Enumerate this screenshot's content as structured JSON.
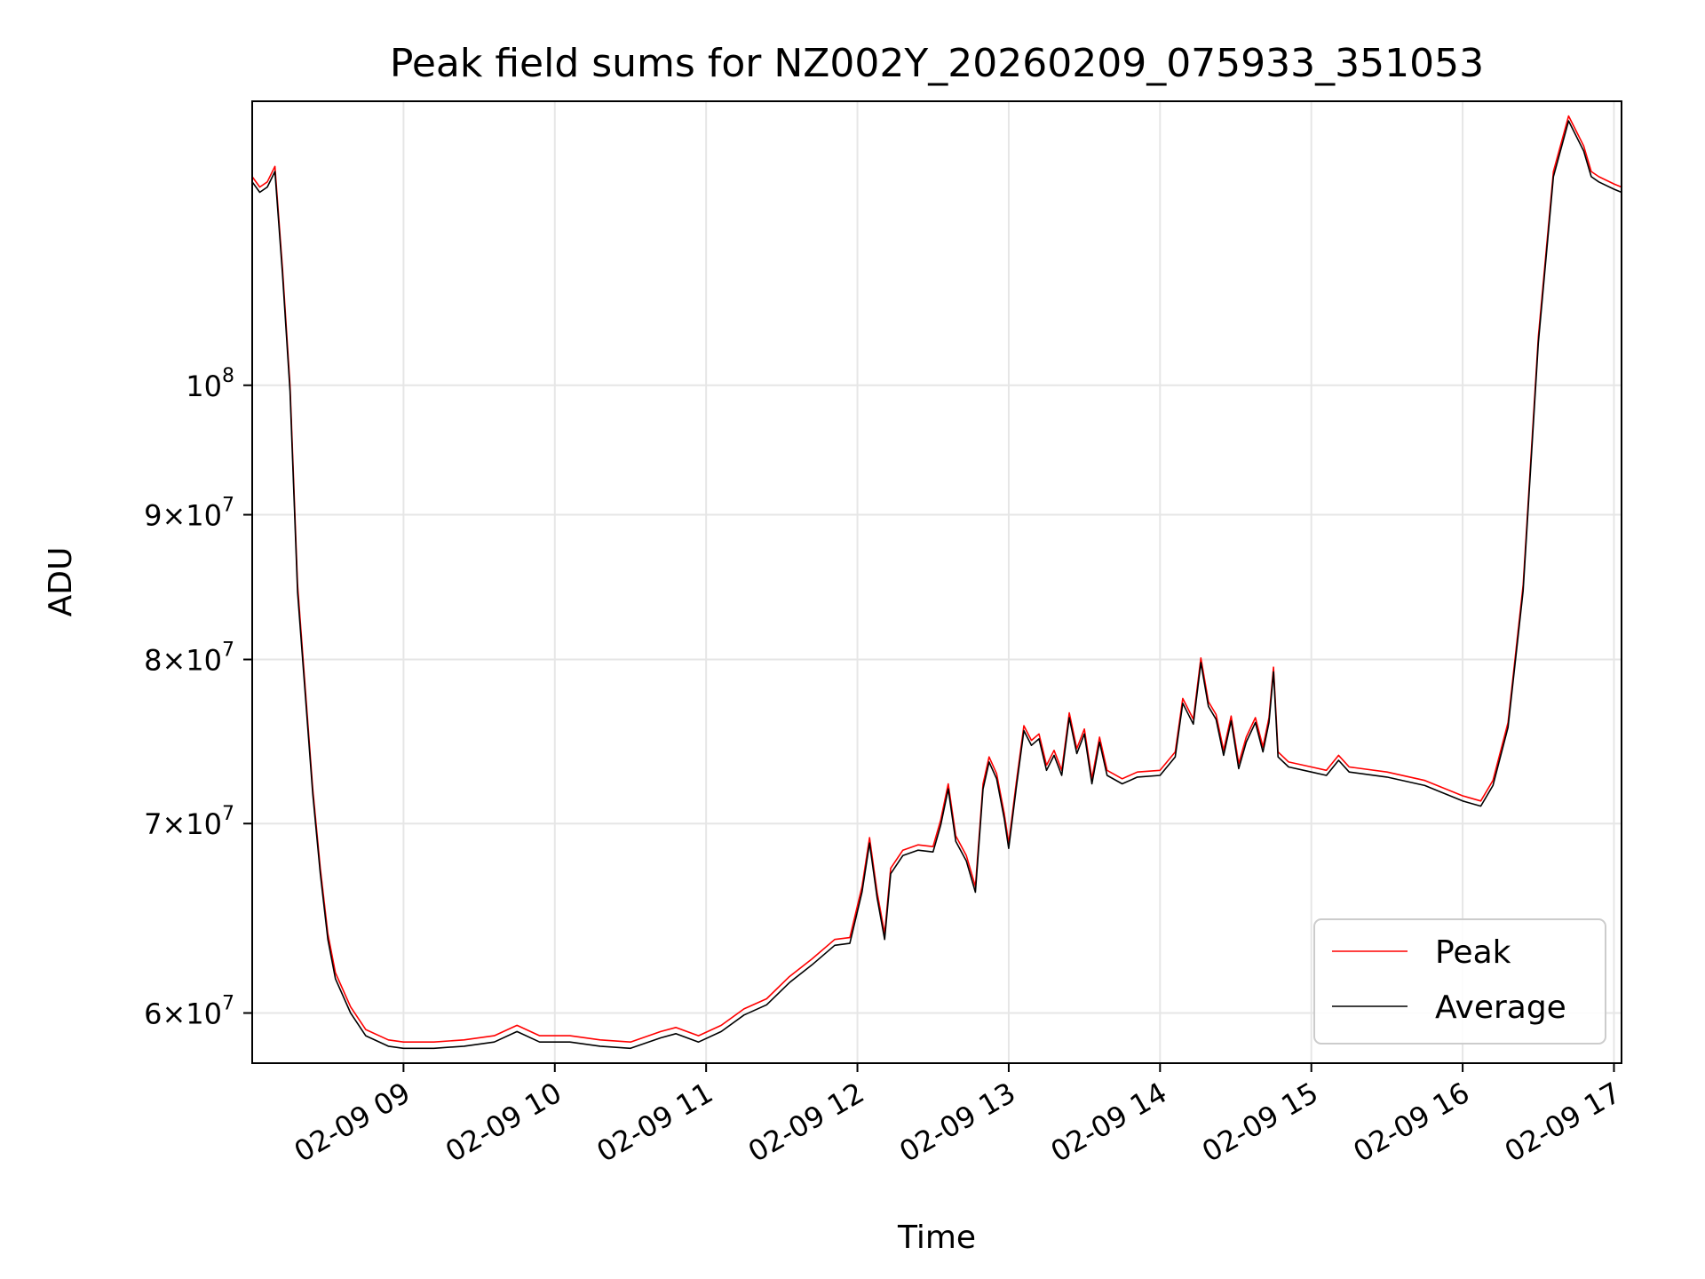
{
  "chart_data": {
    "type": "line",
    "title": "Peak field sums for NZ002Y_20260209_075933_351053",
    "xlabel": "Time",
    "ylabel": "ADU",
    "yscale": "log",
    "ylim": [
      57600000,
      126000000
    ],
    "xlim_hours": [
      8.0,
      17.05
    ],
    "x_ticks": [
      "02-09 09",
      "02-09 10",
      "02-09 11",
      "02-09 12",
      "02-09 13",
      "02-09 14",
      "02-09 15",
      "02-09 16",
      "02-09 17"
    ],
    "y_ticks": [
      {
        "value": 60000000,
        "mantissa": "6",
        "base": "10",
        "exp": "7"
      },
      {
        "value": 70000000,
        "mantissa": "7",
        "base": "10",
        "exp": "7"
      },
      {
        "value": 80000000,
        "mantissa": "8",
        "base": "10",
        "exp": "7"
      },
      {
        "value": 90000000,
        "mantissa": "9",
        "base": "10",
        "exp": "7"
      },
      {
        "value": 100000000,
        "mantissa": "",
        "base": "10",
        "exp": "8"
      }
    ],
    "grid": true,
    "legend_position": "lower-right",
    "series": [
      {
        "name": "Peak",
        "color": "#ff0000",
        "x": [
          8.0,
          8.05,
          8.1,
          8.15,
          8.2,
          8.25,
          8.3,
          8.4,
          8.45,
          8.5,
          8.55,
          8.65,
          8.75,
          8.9,
          9.0,
          9.2,
          9.4,
          9.6,
          9.75,
          9.9,
          10.1,
          10.3,
          10.5,
          10.7,
          10.8,
          10.95,
          11.1,
          11.25,
          11.4,
          11.55,
          11.7,
          11.85,
          11.95,
          12.03,
          12.08,
          12.13,
          12.18,
          12.22,
          12.3,
          12.4,
          12.5,
          12.55,
          12.6,
          12.65,
          12.72,
          12.78,
          12.83,
          12.87,
          12.92,
          12.97,
          13.0,
          13.05,
          13.1,
          13.15,
          13.2,
          13.25,
          13.3,
          13.35,
          13.4,
          13.45,
          13.5,
          13.55,
          13.6,
          13.65,
          13.75,
          13.85,
          14.0,
          14.1,
          14.15,
          14.22,
          14.27,
          14.32,
          14.37,
          14.42,
          14.47,
          14.52,
          14.57,
          14.63,
          14.68,
          14.72,
          14.75,
          14.78,
          14.85,
          15.0,
          15.1,
          15.18,
          15.25,
          15.5,
          15.75,
          16.0,
          16.12,
          16.2,
          16.3,
          16.4,
          16.5,
          16.6,
          16.7,
          16.8,
          16.85,
          16.9,
          17.0,
          17.05
        ],
        "values": [
          118500000,
          117500000,
          118000000,
          119500000,
          110000000,
          100000000,
          85000000,
          72000000,
          67500000,
          64000000,
          62000000,
          60300000,
          59200000,
          58700000,
          58600000,
          58600000,
          58700000,
          58900000,
          59400000,
          58900000,
          58900000,
          58700000,
          58600000,
          59100000,
          59300000,
          58900000,
          59400000,
          60200000,
          60700000,
          61800000,
          62700000,
          63700000,
          63800000,
          66500000,
          69200000,
          66200000,
          64000000,
          67500000,
          68500000,
          68800000,
          68700000,
          70200000,
          72300000,
          69300000,
          68200000,
          66500000,
          72300000,
          73900000,
          72900000,
          70600000,
          68900000,
          72400000,
          75800000,
          74900000,
          75300000,
          73400000,
          74300000,
          73100000,
          76600000,
          74400000,
          75600000,
          72600000,
          75100000,
          73100000,
          72600000,
          73000000,
          73100000,
          74200000,
          77500000,
          76200000,
          80100000,
          77300000,
          76500000,
          74300000,
          76400000,
          73500000,
          75100000,
          76300000,
          74500000,
          76300000,
          79500000,
          74200000,
          73600000,
          73300000,
          73100000,
          74000000,
          73300000,
          73000000,
          72500000,
          71600000,
          71300000,
          72500000,
          76000000,
          85000000,
          104000000,
          119000000,
          124500000,
          121500000,
          119000000,
          118500000,
          117800000,
          117500000
        ]
      },
      {
        "name": "Average",
        "color": "#000000",
        "x": [
          8.0,
          8.05,
          8.1,
          8.15,
          8.2,
          8.25,
          8.3,
          8.4,
          8.45,
          8.5,
          8.55,
          8.65,
          8.75,
          8.9,
          9.0,
          9.2,
          9.4,
          9.6,
          9.75,
          9.9,
          10.1,
          10.3,
          10.5,
          10.7,
          10.8,
          10.95,
          11.1,
          11.25,
          11.4,
          11.55,
          11.7,
          11.85,
          11.95,
          12.03,
          12.08,
          12.13,
          12.18,
          12.22,
          12.3,
          12.4,
          12.5,
          12.55,
          12.6,
          12.65,
          12.72,
          12.78,
          12.83,
          12.87,
          12.92,
          12.97,
          13.0,
          13.05,
          13.1,
          13.15,
          13.2,
          13.25,
          13.3,
          13.35,
          13.4,
          13.45,
          13.5,
          13.55,
          13.6,
          13.65,
          13.75,
          13.85,
          14.0,
          14.1,
          14.15,
          14.22,
          14.27,
          14.32,
          14.37,
          14.42,
          14.47,
          14.52,
          14.57,
          14.63,
          14.68,
          14.72,
          14.75,
          14.78,
          14.85,
          15.0,
          15.1,
          15.18,
          15.25,
          15.5,
          15.75,
          16.0,
          16.12,
          16.2,
          16.3,
          16.4,
          16.5,
          16.6,
          16.7,
          16.8,
          16.85,
          16.9,
          17.0,
          17.05
        ],
        "values": [
          118000000,
          117000000,
          117500000,
          119000000,
          109500000,
          99500000,
          84500000,
          71700000,
          67200000,
          63700000,
          61700000,
          60000000,
          58900000,
          58400000,
          58300000,
          58300000,
          58400000,
          58600000,
          59100000,
          58600000,
          58600000,
          58400000,
          58300000,
          58800000,
          59000000,
          58600000,
          59100000,
          59900000,
          60400000,
          61500000,
          62400000,
          63400000,
          63500000,
          66200000,
          68900000,
          65900000,
          63700000,
          67200000,
          68200000,
          68500000,
          68400000,
          69900000,
          72000000,
          69000000,
          67900000,
          66200000,
          72000000,
          73600000,
          72600000,
          70300000,
          68600000,
          72100000,
          75500000,
          74600000,
          75000000,
          73100000,
          74000000,
          72800000,
          76300000,
          74100000,
          75300000,
          72300000,
          74800000,
          72800000,
          72300000,
          72700000,
          72800000,
          73900000,
          77200000,
          75900000,
          79800000,
          77000000,
          76200000,
          74000000,
          76100000,
          73200000,
          74800000,
          76000000,
          74200000,
          76000000,
          79200000,
          73900000,
          73300000,
          73000000,
          72800000,
          73700000,
          73000000,
          72700000,
          72200000,
          71300000,
          71000000,
          72200000,
          75700000,
          84600000,
          103500000,
          118500000,
          124000000,
          121000000,
          118500000,
          118000000,
          117300000,
          117000000
        ]
      }
    ]
  }
}
